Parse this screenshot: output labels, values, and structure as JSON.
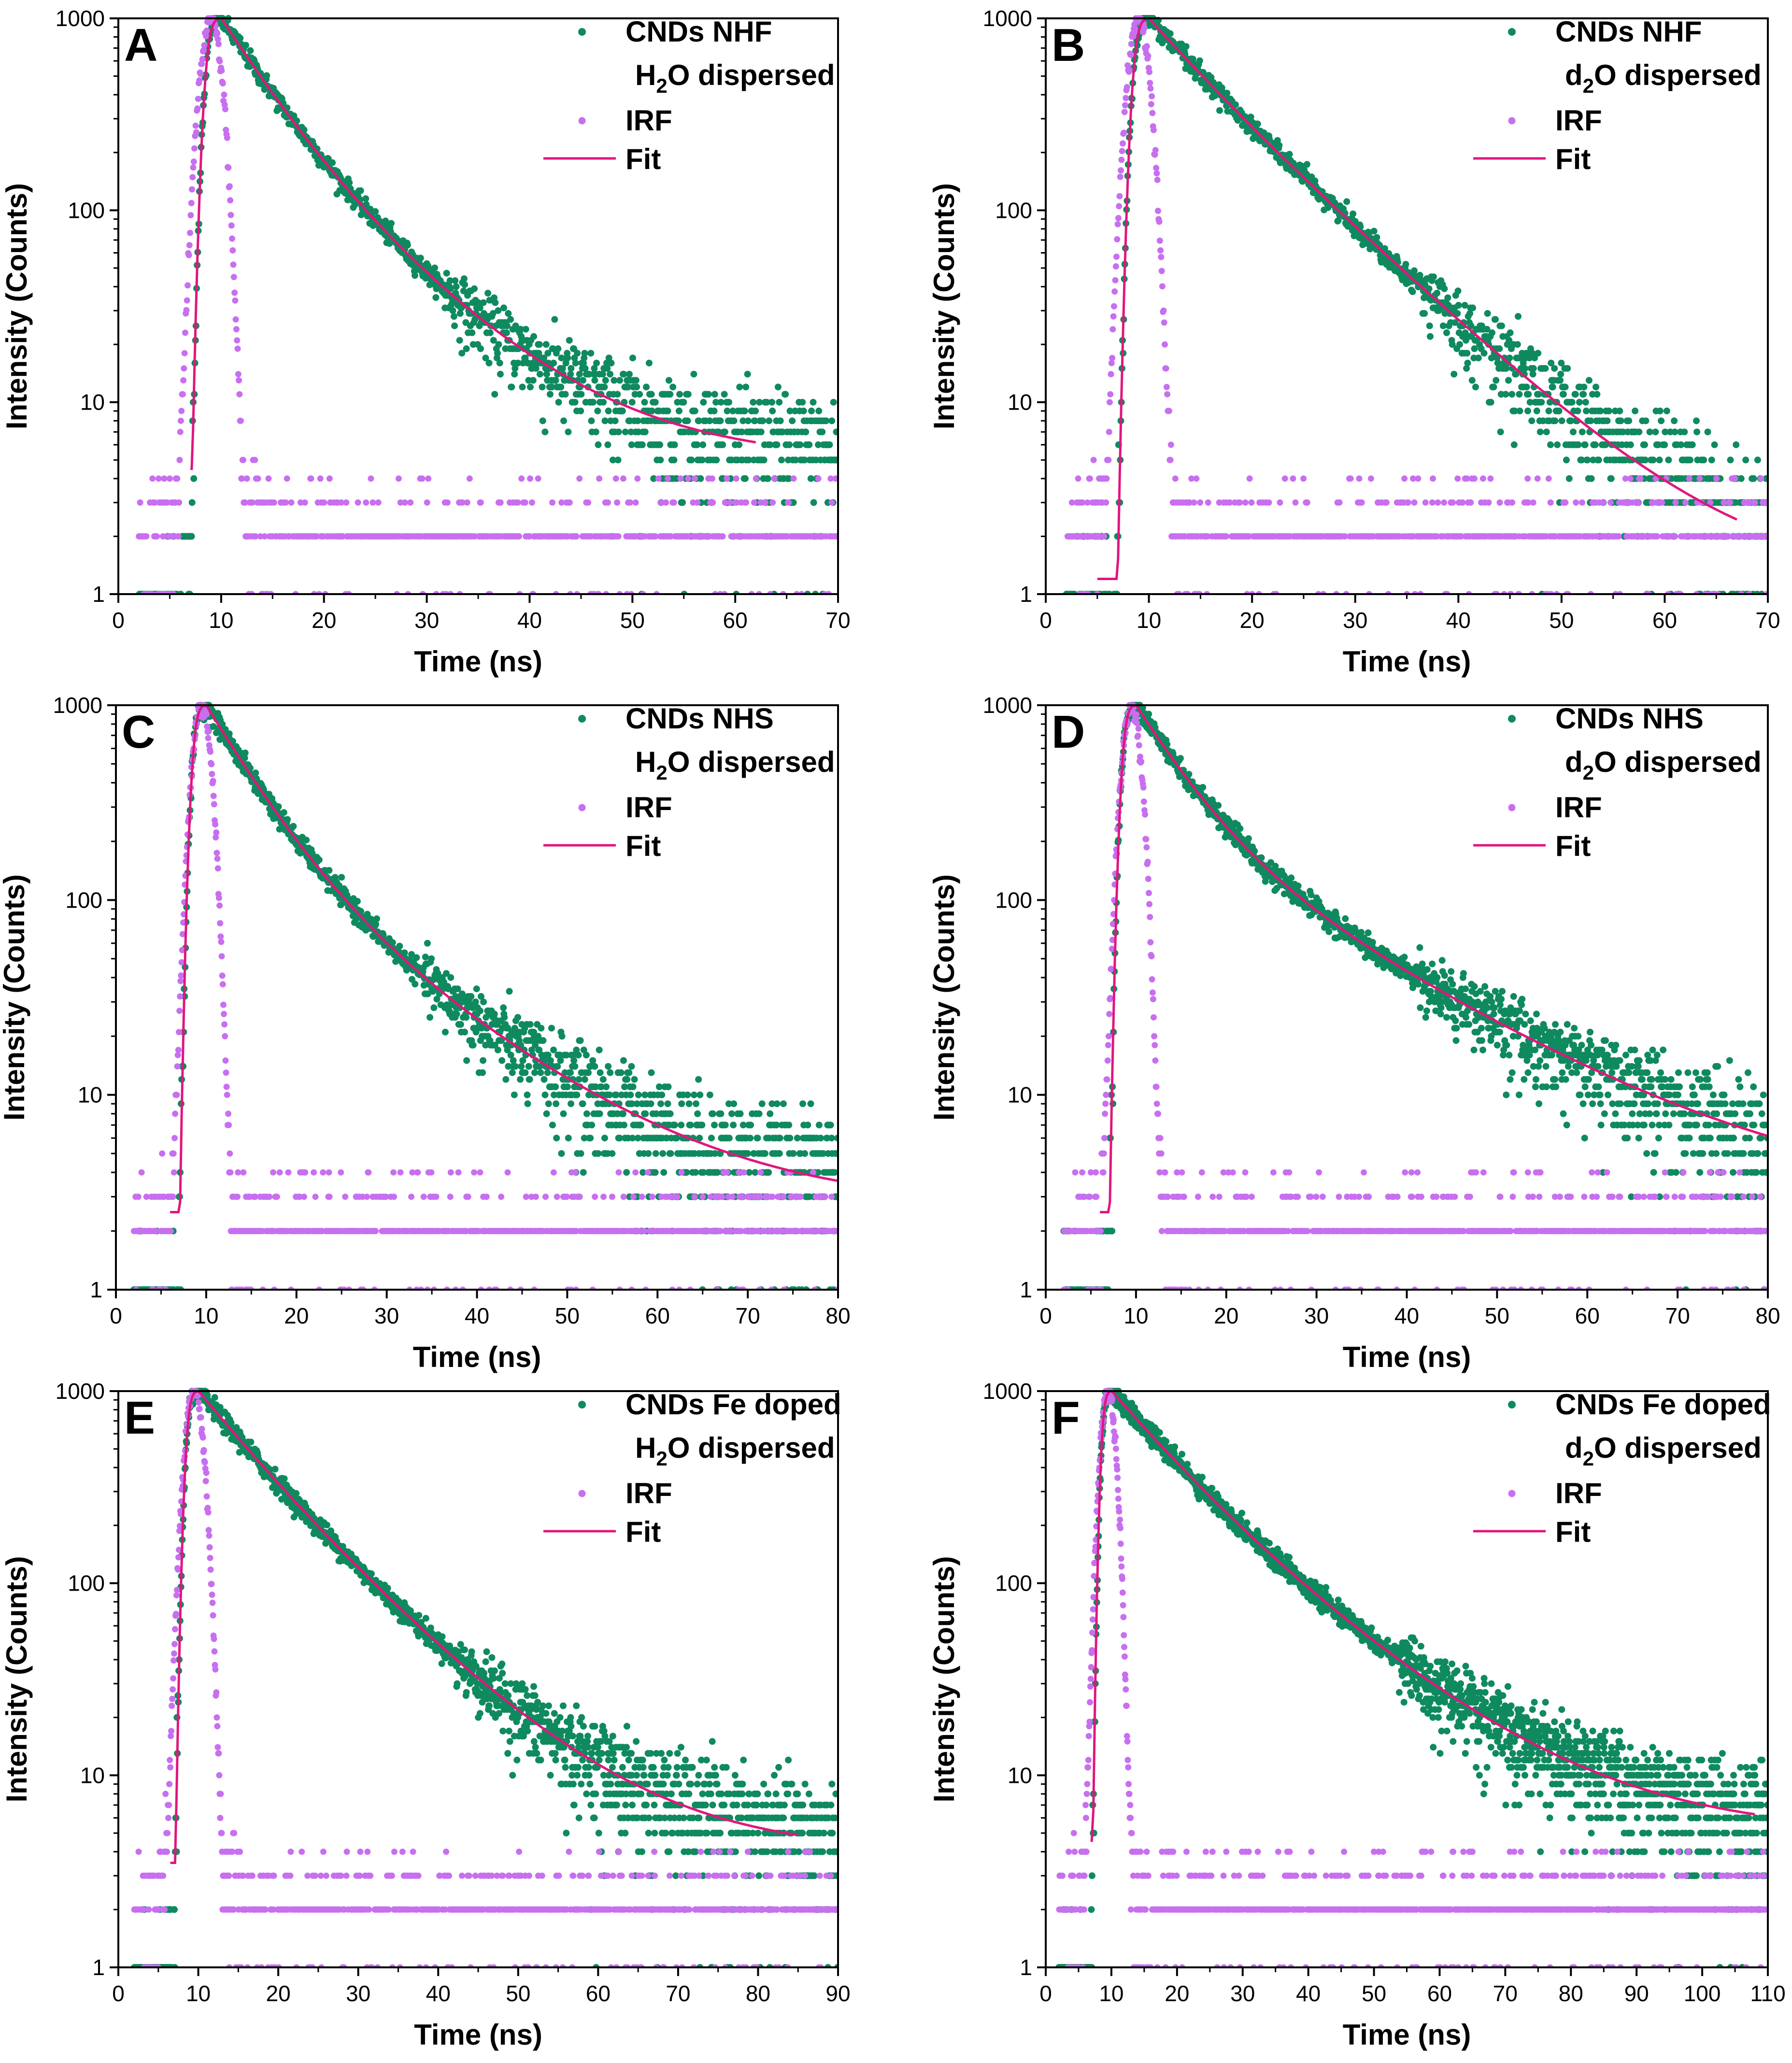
{
  "colors": {
    "sample": "#0f8a5f",
    "irf": "#c86ff0",
    "fit": "#e0167e",
    "axis": "#000000"
  },
  "chart_data": [
    {
      "panel": "A",
      "type": "scatter",
      "xlabel": "Time (ns)",
      "ylabel": "Intensity (Counts)",
      "xlim": [
        0,
        70
      ],
      "ylim": [
        1,
        1000
      ],
      "yscale": "log",
      "xticks": [
        "0",
        "10",
        "20",
        "30",
        "40",
        "50",
        "60",
        "70"
      ],
      "yticks": [
        "1",
        "10",
        "100",
        "1000"
      ],
      "legend": {
        "sample": "CNDs NHF",
        "sample_sub_pre": "H",
        "sample_sub": "2",
        "sample_sub_post": "O dispersed",
        "irf": "IRF",
        "fit": "Fit"
      },
      "series": [
        {
          "name": "CNDs NHF H2O dispersed",
          "peak_x": 10,
          "baseline": 5,
          "decay": [
            {
              "a": 0.72,
              "tau": 4.5
            },
            {
              "a": 0.28,
              "tau": 9.5
            }
          ],
          "data_end": 70
        },
        {
          "name": "IRF",
          "peak_x": 9,
          "width": 0.9,
          "data_end": 70
        },
        {
          "name": "Fit",
          "x_start": 7.0,
          "x_end": 62,
          "start_y": 4.5
        }
      ]
    },
    {
      "panel": "B",
      "type": "scatter",
      "xlabel": "Time (ns)",
      "ylabel": "Intensity (Counts)",
      "xlim": [
        0,
        70
      ],
      "ylim": [
        1,
        1000
      ],
      "yscale": "log",
      "xticks": [
        "0",
        "10",
        "20",
        "30",
        "40",
        "50",
        "60",
        "70"
      ],
      "yticks": [
        "1",
        "10",
        "100",
        "1000"
      ],
      "legend": {
        "sample": "CNDs NHF",
        "sample_sub_pre": "d",
        "sample_sub": "2",
        "sample_sub_post": "O dispersed",
        "irf": "IRF",
        "fit": "Fit"
      },
      "series": [
        {
          "name": "CNDs NHF d2O dispersed",
          "peak_x": 10,
          "baseline": 1.2,
          "decay": [
            {
              "a": 0.3,
              "tau": 5
            },
            {
              "a": 0.7,
              "tau": 9
            }
          ],
          "data_end": 70
        },
        {
          "name": "IRF",
          "peak_x": 9,
          "width": 0.9,
          "data_end": 70
        },
        {
          "name": "Fit",
          "x_start": 5.0,
          "x_end": 67,
          "start_y": 1.2
        }
      ]
    },
    {
      "panel": "C",
      "type": "scatter",
      "xlabel": "Time (ns)",
      "ylabel": "Intensity (Counts)",
      "xlim": [
        0,
        80
      ],
      "ylim": [
        1,
        1000
      ],
      "yscale": "log",
      "xticks": [
        "0",
        "10",
        "20",
        "30",
        "40",
        "50",
        "60",
        "70",
        "80"
      ],
      "yticks": [
        "1",
        "10",
        "100",
        "1000"
      ],
      "legend": {
        "sample": "CNDs NHS",
        "sample_sub_pre": "H",
        "sample_sub": "2",
        "sample_sub_post": "O dispersed",
        "irf": "IRF",
        "fit": "Fit"
      },
      "series": [
        {
          "name": "CNDs NHS H2O dispersed",
          "peak_x": 10,
          "baseline": 2.7,
          "decay": [
            {
              "a": 0.8,
              "tau": 5
            },
            {
              "a": 0.2,
              "tau": 13
            }
          ],
          "data_end": 80
        },
        {
          "name": "IRF",
          "peak_x": 9.5,
          "width": 0.9,
          "data_end": 80
        },
        {
          "name": "Fit",
          "x_start": 6.0,
          "x_end": 80,
          "start_y": 2.5
        }
      ]
    },
    {
      "panel": "D",
      "type": "scatter",
      "xlabel": "Time (ns)",
      "ylabel": "Intensity (Counts)",
      "xlim": [
        0,
        80
      ],
      "ylim": [
        1,
        1000
      ],
      "yscale": "log",
      "xticks": [
        "0",
        "10",
        "20",
        "30",
        "40",
        "50",
        "60",
        "70",
        "80"
      ],
      "yticks": [
        "1",
        "10",
        "100",
        "1000"
      ],
      "legend": {
        "sample": "CNDs NHS",
        "sample_sub_pre": "d",
        "sample_sub": "2",
        "sample_sub_post": "O dispersed",
        "irf": "IRF",
        "fit": "Fit"
      },
      "series": [
        {
          "name": "CNDs NHS d2O dispersed",
          "peak_x": 10,
          "baseline": 3.0,
          "decay": [
            {
              "a": 0.75,
              "tau": 5
            },
            {
              "a": 0.25,
              "tau": 16
            }
          ],
          "data_end": 80
        },
        {
          "name": "IRF",
          "peak_x": 9.5,
          "width": 0.9,
          "data_end": 80
        },
        {
          "name": "Fit",
          "x_start": 6.0,
          "x_end": 80,
          "start_y": 2.5
        }
      ]
    },
    {
      "panel": "E",
      "type": "scatter",
      "xlabel": "Time (ns)",
      "ylabel": "Intensity (Counts)",
      "xlim": [
        0,
        90
      ],
      "ylim": [
        1,
        1000
      ],
      "yscale": "log",
      "xticks": [
        "0",
        "10",
        "20",
        "30",
        "40",
        "50",
        "60",
        "70",
        "80",
        "90"
      ],
      "yticks": [
        "1",
        "10",
        "100",
        "1000"
      ],
      "legend": {
        "sample": "CNDs Fe doped",
        "sample_sub_pre": "H",
        "sample_sub": "2",
        "sample_sub_post": "O dispersed",
        "irf": "IRF",
        "fit": "Fit"
      },
      "series": [
        {
          "name": "CNDs Fe doped H2O dispersed",
          "peak_x": 10,
          "baseline": 4.0,
          "decay": [
            {
              "a": 0.55,
              "tau": 7
            },
            {
              "a": 0.45,
              "tau": 12
            }
          ],
          "data_end": 90
        },
        {
          "name": "IRF",
          "peak_x": 9.5,
          "width": 1.0,
          "data_end": 90
        },
        {
          "name": "Fit",
          "x_start": 6.5,
          "x_end": 85,
          "start_y": 3.5
        }
      ]
    },
    {
      "panel": "F",
      "type": "scatter",
      "xlabel": "Time (ns)",
      "ylabel": "Intensity (Counts)",
      "xlim": [
        0,
        110
      ],
      "ylim": [
        1,
        1000
      ],
      "yscale": "log",
      "xticks": [
        "0",
        "10",
        "20",
        "30",
        "40",
        "50",
        "60",
        "70",
        "80",
        "90",
        "100",
        "110"
      ],
      "yticks": [
        "1",
        "10",
        "100",
        "1000"
      ],
      "legend": {
        "sample": "CNDs Fe doped",
        "sample_sub_pre": "d",
        "sample_sub": "2",
        "sample_sub_post": "O dispersed",
        "irf": "IRF",
        "fit": "Fit"
      },
      "series": [
        {
          "name": "CNDs Fe doped d2O dispersed",
          "peak_x": 10,
          "baseline": 5.0,
          "decay": [
            {
              "a": 0.6,
              "tau": 9
            },
            {
              "a": 0.4,
              "tau": 17
            }
          ],
          "data_end": 110
        },
        {
          "name": "IRF",
          "peak_x": 9.5,
          "width": 1.0,
          "data_end": 110
        },
        {
          "name": "Fit",
          "x_start": 7.0,
          "x_end": 108,
          "start_y": 4.5
        }
      ]
    }
  ]
}
